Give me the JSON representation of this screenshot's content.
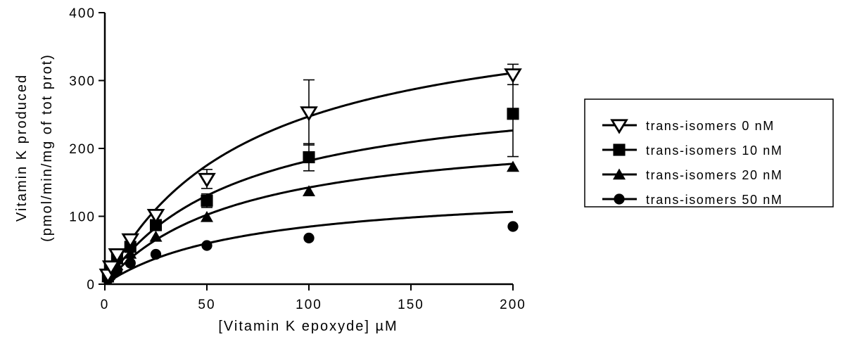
{
  "chart_data": {
    "type": "scatter",
    "title": "",
    "xlabel": "[Vitamin K epoxyde] µM",
    "ylabel_line1": "Vitamin K produced",
    "ylabel_line2": "(pmol/min/mg of tot prot)",
    "xlim": [
      0,
      200
    ],
    "ylim": [
      0,
      400
    ],
    "x_ticks": [
      0,
      50,
      100,
      150,
      200
    ],
    "y_ticks": [
      0,
      100,
      200,
      300,
      400
    ],
    "grid": false,
    "legend_position": "right",
    "series": [
      {
        "name": "trans-isomers  0 nM",
        "marker": "triangle-down-open",
        "x": [
          1.5,
          3,
          6,
          12.5,
          25,
          50,
          100,
          200
        ],
        "y": [
          14,
          26,
          44,
          66,
          102,
          155,
          253,
          309
        ],
        "error": [
          0,
          0,
          0,
          0,
          0,
          14,
          48,
          15
        ],
        "fit": {
          "vmax": 420,
          "km": 70
        }
      },
      {
        "name": "trans-isomers 10 nM",
        "marker": "square-filled",
        "x": [
          1.5,
          3,
          6,
          12.5,
          25,
          50,
          100,
          200
        ],
        "y": [
          12,
          22,
          38,
          55,
          87,
          123,
          187,
          251
        ],
        "error": [
          0,
          0,
          0,
          0,
          0,
          10,
          20,
          63
        ],
        "fit": {
          "vmax": 300,
          "km": 65
        }
      },
      {
        "name": "trans-isomers 20 nM",
        "marker": "triangle-up-filled",
        "x": [
          1.5,
          3,
          6,
          12.5,
          25,
          50,
          100,
          200
        ],
        "y": [
          10,
          18,
          28,
          45,
          70,
          99,
          137,
          173
        ],
        "error": [
          0,
          0,
          0,
          0,
          0,
          0,
          0,
          0
        ],
        "fit": {
          "vmax": 235,
          "km": 65
        }
      },
      {
        "name": "trans-isomers 50 nM",
        "marker": "circle-filled",
        "x": [
          1.5,
          3,
          6,
          12.5,
          25,
          50,
          100,
          200
        ],
        "y": [
          7,
          12,
          20,
          31,
          44,
          57,
          68,
          85
        ],
        "error": [
          0,
          0,
          0,
          0,
          0,
          0,
          0,
          0
        ],
        "fit": {
          "vmax": 144,
          "km": 70
        }
      }
    ]
  }
}
